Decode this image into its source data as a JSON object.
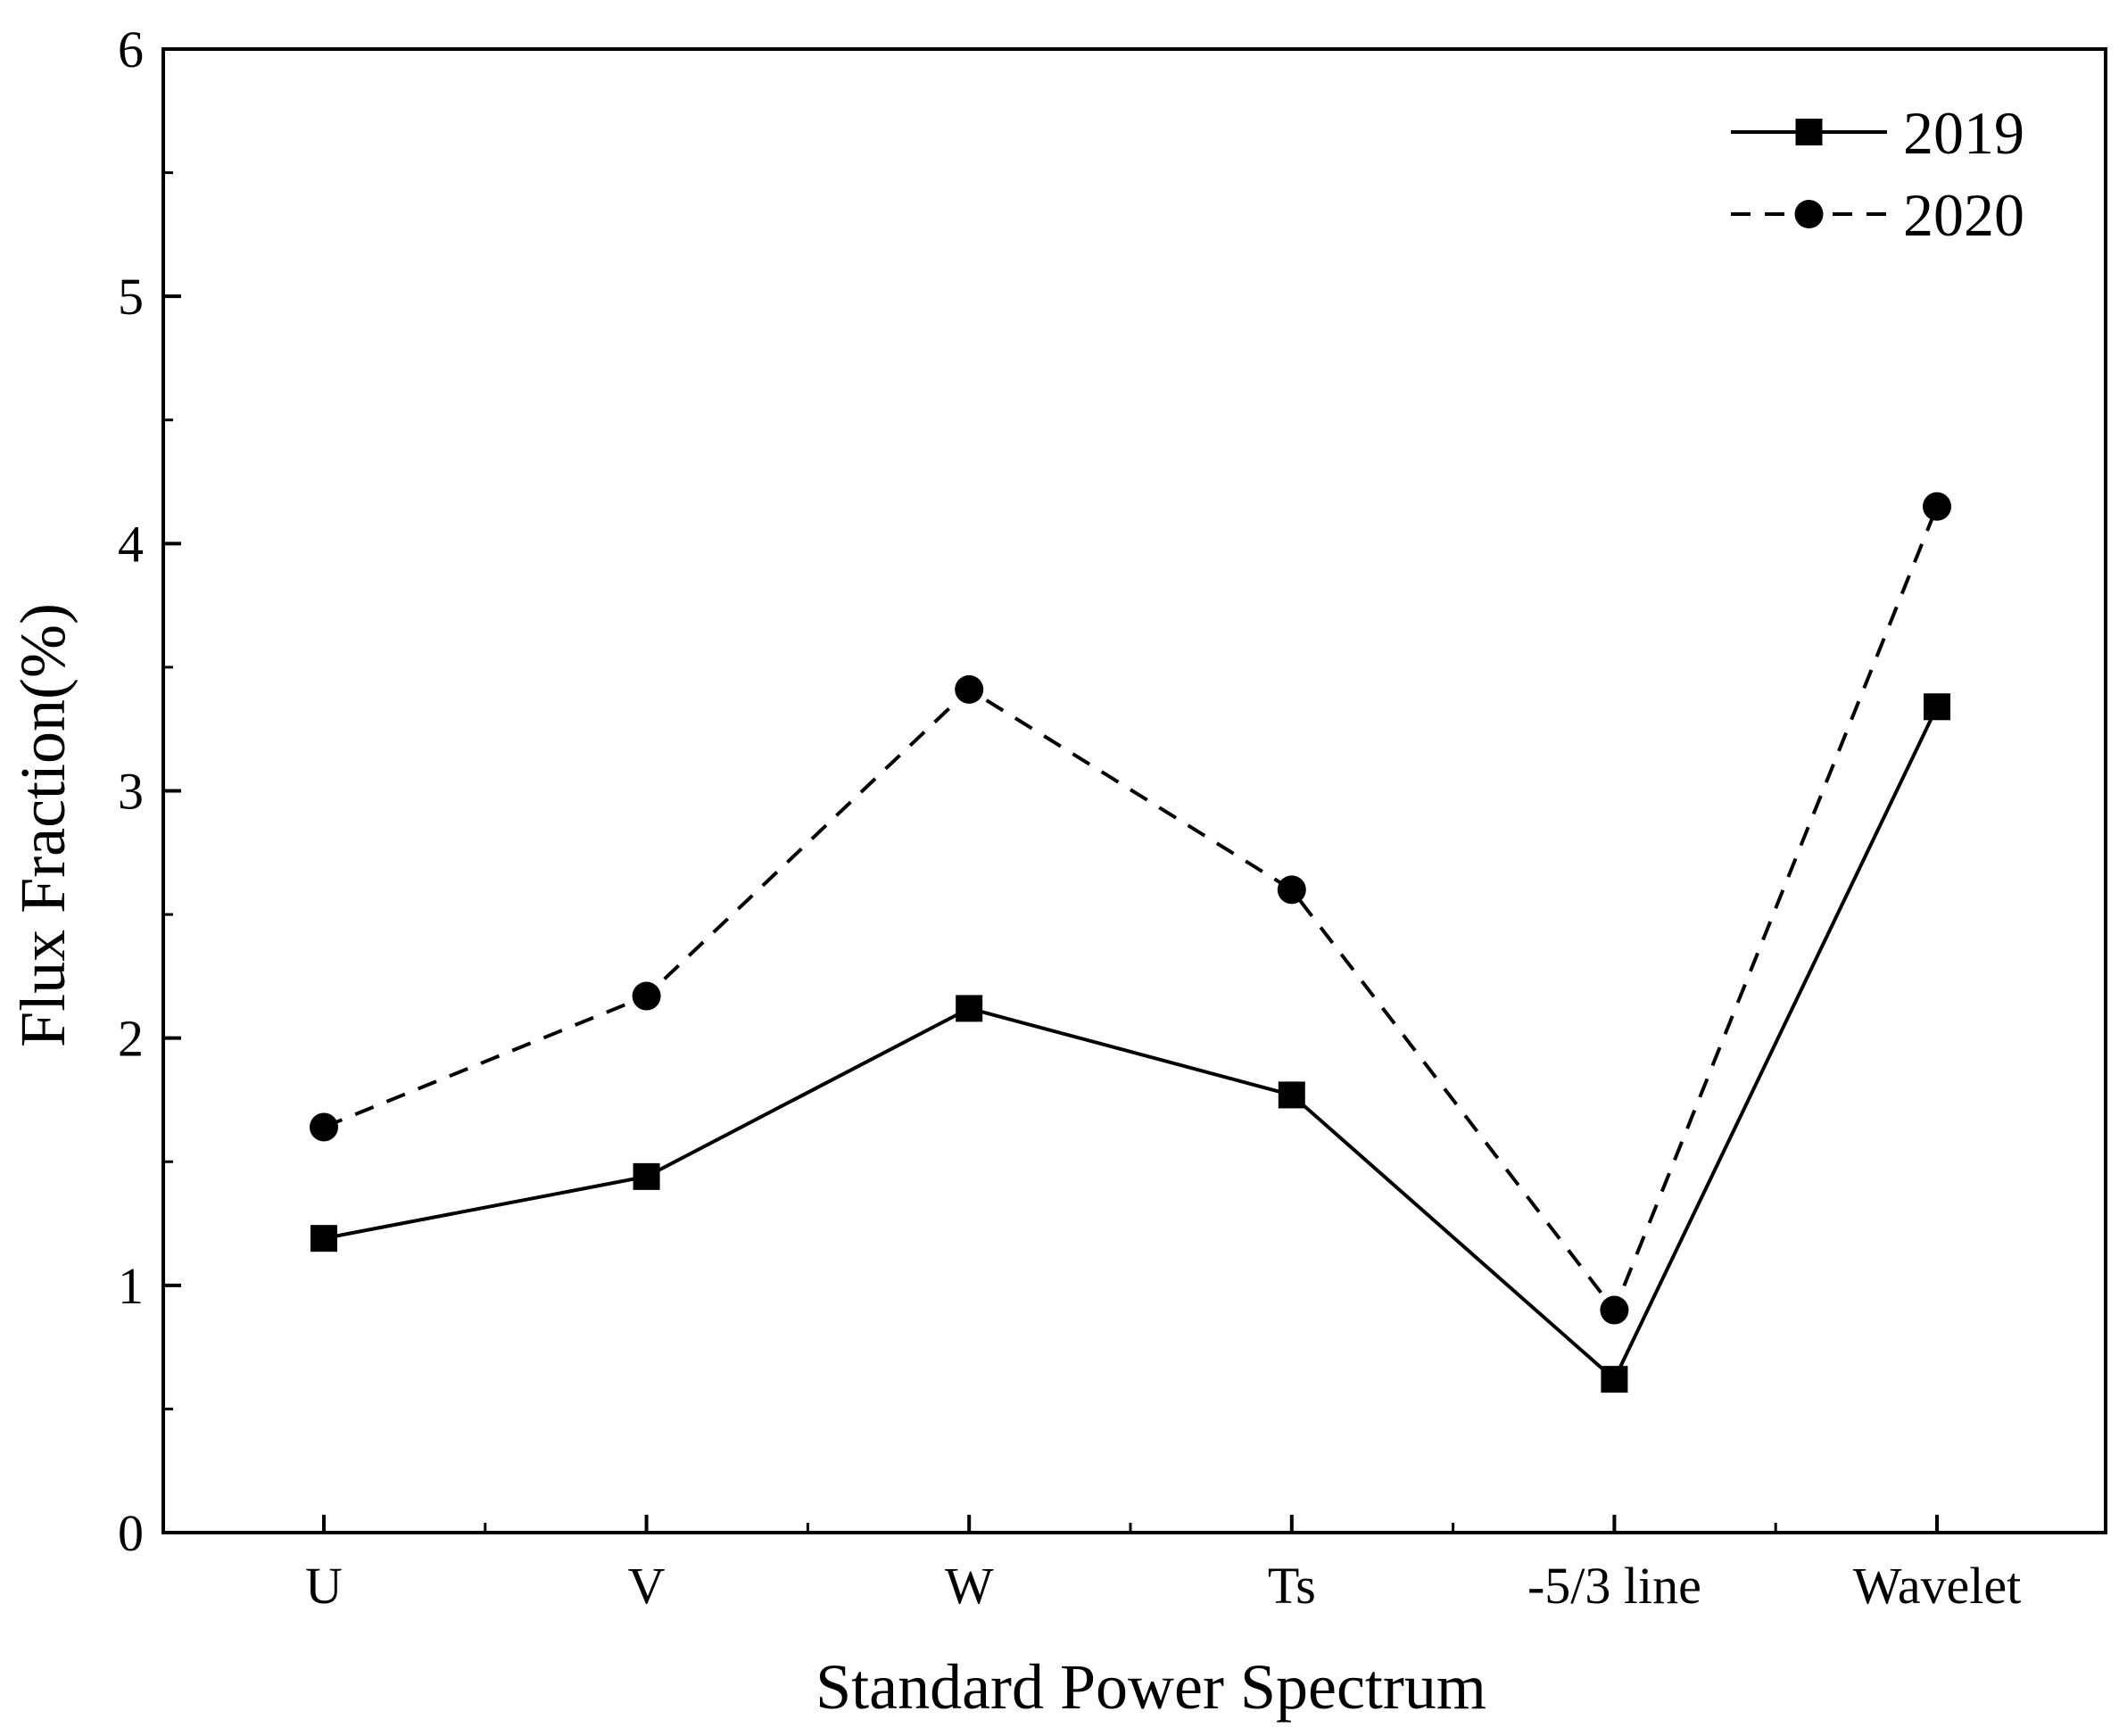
{
  "chart_data": {
    "type": "line",
    "title": "",
    "xlabel": "Standard Power Spectrum",
    "ylabel": "Flux Fraction(%)",
    "categories": [
      "U",
      "V",
      "W",
      "Ts",
      "-5/3 line",
      "Wavelet"
    ],
    "ylim": [
      0,
      6
    ],
    "yticks": [
      0,
      1,
      2,
      3,
      4,
      5,
      6
    ],
    "grid": false,
    "legend_position": "top-right",
    "series": [
      {
        "name": "2019",
        "values": [
          1.19,
          1.44,
          2.12,
          1.77,
          0.62,
          3.34
        ],
        "line_style": "solid",
        "marker": "square",
        "color": "#000000"
      },
      {
        "name": "2020",
        "values": [
          1.64,
          2.17,
          3.41,
          2.6,
          0.9,
          4.15
        ],
        "line_style": "dashed",
        "marker": "circle",
        "color": "#000000"
      }
    ]
  }
}
